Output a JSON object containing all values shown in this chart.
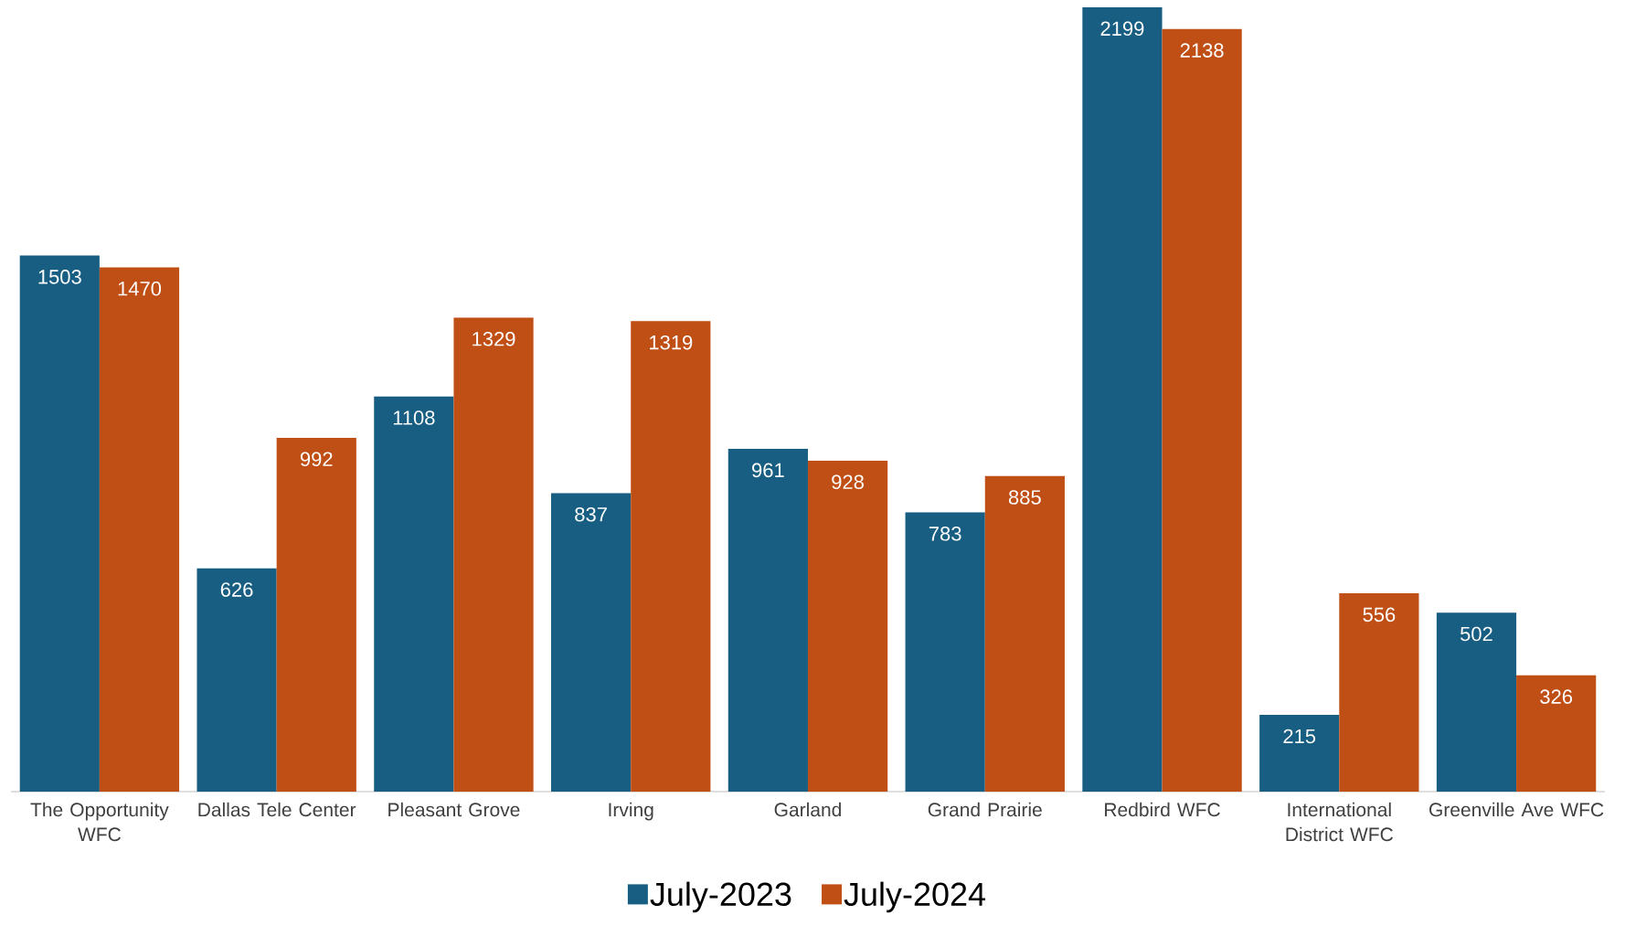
{
  "chart_data": {
    "type": "bar",
    "categories": [
      "The Opportunity WFC",
      "Dallas Tele Center",
      "Pleasant Grove",
      "Irving",
      "Garland",
      "Grand Prairie",
      "Redbird WFC",
      "International District WFC",
      "Greenville Ave WFC"
    ],
    "series": [
      {
        "name": "July-2023",
        "color": "#175e82",
        "values": [
          1503,
          626,
          1108,
          837,
          961,
          783,
          2199,
          215,
          502
        ]
      },
      {
        "name": "July-2024",
        "color": "#c04f15",
        "values": [
          1470,
          992,
          1329,
          1319,
          928,
          885,
          2138,
          556,
          326
        ]
      }
    ],
    "data_labels": true,
    "legend": "bottom",
    "tick_labels": "x"
  }
}
